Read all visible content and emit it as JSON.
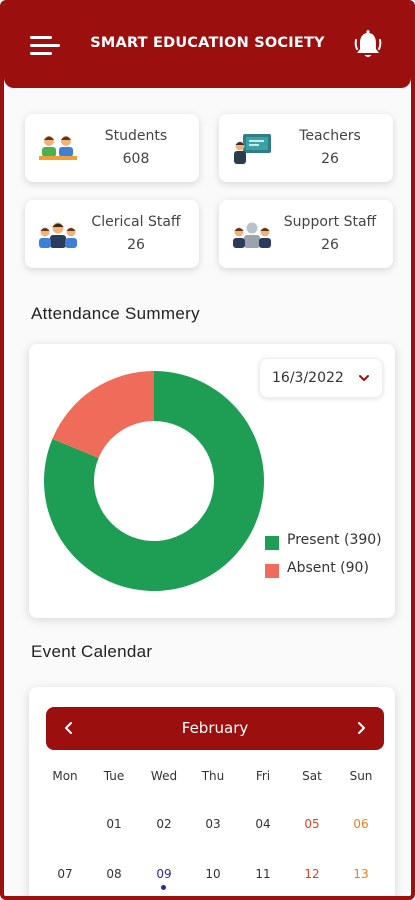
{
  "app": {
    "title": "SMART EDUCATION SOCIETY",
    "menu_icon": "hamburger-menu-icon",
    "bell_icon": "bell-icon",
    "accent": "#9b0f0f"
  },
  "stats": [
    {
      "label": "Students",
      "value": "608",
      "icon": "students-icon"
    },
    {
      "label": "Teachers",
      "value": "26",
      "icon": "teacher-board-icon"
    },
    {
      "label": "Clerical Staff",
      "value": "26",
      "icon": "clerical-staff-icon"
    },
    {
      "label": "Support Staff",
      "value": "26",
      "icon": "support-staff-icon"
    }
  ],
  "attendance": {
    "title": "Attendance Summery",
    "date": "16/3/2022",
    "legend": [
      {
        "label": "Present (390)",
        "color": "#1e9e55"
      },
      {
        "label": "Absent  (90)",
        "color": "#ef6b5a"
      }
    ]
  },
  "chart_data": {
    "type": "pie",
    "categories": [
      "Present",
      "Absent"
    ],
    "values": [
      390,
      90
    ],
    "colors": [
      "#1e9e55",
      "#ef6b5a"
    ],
    "title": ""
  },
  "calendar": {
    "title": "Event Calendar",
    "month": "February",
    "weekdays": [
      "Mon",
      "Tue",
      "Wed",
      "Thu",
      "Fri",
      "Sat",
      "Sun"
    ],
    "weeks": [
      [
        "",
        "01",
        "02",
        "03",
        "04",
        "05",
        "06"
      ],
      [
        "07",
        "08",
        "09",
        "10",
        "11",
        "12",
        "13"
      ]
    ],
    "today": "09",
    "colors": {
      "saturday": "#e0412a",
      "sunday": "#f07f1d",
      "today": "#2b2b9a"
    }
  }
}
